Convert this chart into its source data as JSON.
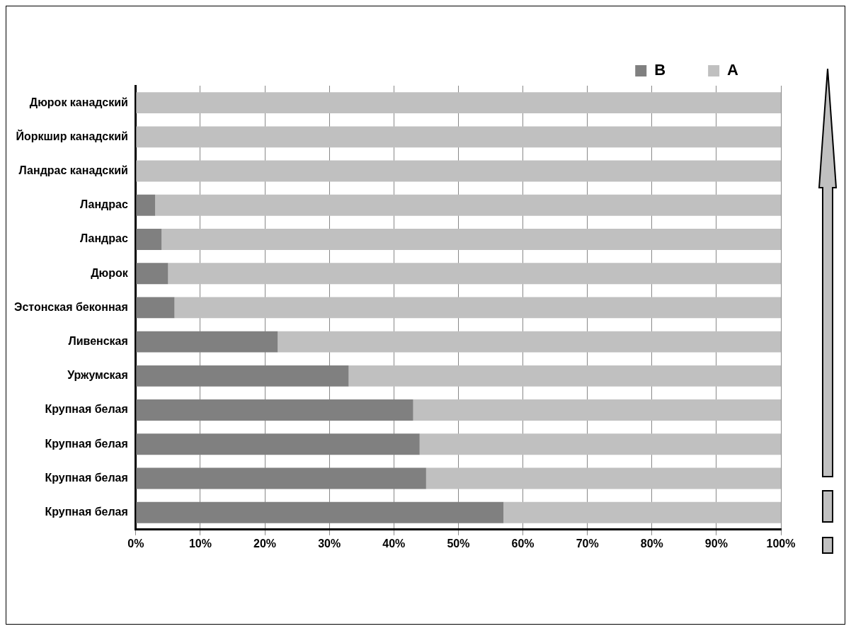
{
  "chart_data": {
    "type": "bar",
    "orientation": "horizontal",
    "stacked": true,
    "categories": [
      "Дюрок канадский",
      "Йоркшир канадский",
      "Ландрас канадский",
      "Ландрас",
      "Ландрас",
      "Дюрок",
      "Эстонская беконная",
      "Ливенская",
      "Уржумская",
      "Крупная белая",
      "Крупная белая",
      "Крупная белая",
      "Крупная белая"
    ],
    "series": [
      {
        "name": "B",
        "color": "#808080",
        "values": [
          0,
          0,
          0,
          3,
          4,
          5,
          6,
          22,
          33,
          43,
          44,
          45,
          57
        ]
      },
      {
        "name": "A",
        "color": "#c0c0c0",
        "values": [
          100,
          100,
          100,
          97,
          96,
          95,
          94,
          78,
          67,
          57,
          56,
          55,
          43
        ]
      }
    ],
    "xlim": [
      0,
      100
    ],
    "xticks": [
      {
        "value": 0,
        "label": "0%"
      },
      {
        "value": 10,
        "label": "10%"
      },
      {
        "value": 20,
        "label": "20%"
      },
      {
        "value": 30,
        "label": "30%"
      },
      {
        "value": 40,
        "label": "40%"
      },
      {
        "value": 50,
        "label": "50%"
      },
      {
        "value": 60,
        "label": "60%"
      },
      {
        "value": 70,
        "label": "70%"
      },
      {
        "value": 80,
        "label": "80%"
      },
      {
        "value": 90,
        "label": "90%"
      },
      {
        "value": 100,
        "label": "100%"
      }
    ],
    "grid": "x",
    "legend": "top right"
  }
}
